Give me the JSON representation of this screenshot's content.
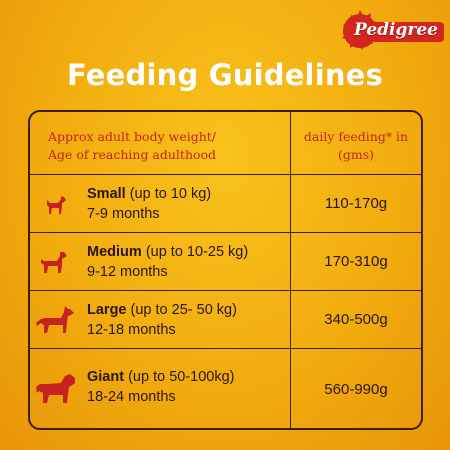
{
  "brand": {
    "name": "Pedigree"
  },
  "title": "Feeding Guidelines",
  "table": {
    "header": {
      "left_line1": "Approx adult body weight/",
      "left_line2": "Age of reaching adulthood",
      "right_line1": "daily feeding* in",
      "right_line2": "(gms)"
    },
    "rows": [
      {
        "size": "Small",
        "range": "(up to 10 kg)",
        "months": "7-9 months",
        "amount": "110-170g",
        "icon": "small-dog-icon"
      },
      {
        "size": "Medium",
        "range": "(up to 10-25 kg)",
        "months": "9-12 months",
        "amount": "170-310g",
        "icon": "medium-dog-icon"
      },
      {
        "size": "Large",
        "range": "(up to 25- 50 kg)",
        "months": "12-18 months",
        "amount": "340-500g",
        "icon": "large-dog-icon"
      },
      {
        "size": "Giant",
        "range": "(up to 50-100kg)",
        "months": "18-24 months",
        "amount": "560-990g",
        "icon": "giant-dog-icon"
      }
    ]
  },
  "colors": {
    "background": "#f2ac0e",
    "accent_red": "#c4231e",
    "border": "#3b1e10",
    "title": "#ffffff"
  }
}
